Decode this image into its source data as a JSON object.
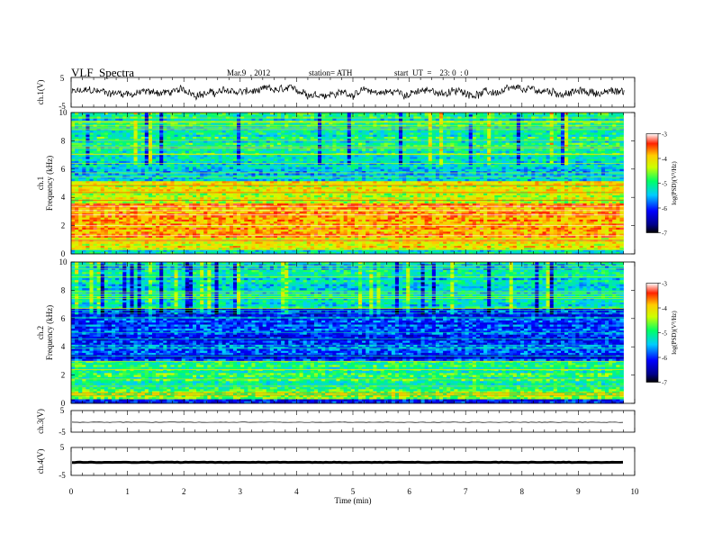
{
  "header": {
    "title": "VLF  Spectra",
    "date": "Mar.9  , 2012",
    "station": "station= ATH",
    "start": "start  UT  =    23: 0  : 0"
  },
  "chart_data": [
    {
      "type": "line",
      "id": "ch1",
      "ylabel": "ch.1(V)",
      "ylim": [
        -5,
        5
      ],
      "yticks": [
        "5",
        "-5"
      ],
      "xlim": [
        0,
        10
      ],
      "series": [
        {
          "values_note": "noisy waveform between about -2.5 and 2.5 V",
          "min": -2.5,
          "max": 2.5,
          "color": "#000000"
        }
      ]
    },
    {
      "type": "heatmap",
      "id": "ch1-spectrogram",
      "ylabel": "ch.1\nFrequency  (kHz)",
      "ylim": [
        0,
        10
      ],
      "yticks": [
        "0",
        "2",
        "4",
        "6",
        "8",
        "10"
      ],
      "xlim": [
        0,
        9.8
      ],
      "frequency_bands_kHz": [
        {
          "from": 0,
          "to": 0.3,
          "level": -5.2
        },
        {
          "from": 0.3,
          "to": 1.2,
          "level": -4.2
        },
        {
          "from": 1.2,
          "to": 3.6,
          "level": -3.8
        },
        {
          "from": 3.6,
          "to": 5.2,
          "level": -4.3
        },
        {
          "from": 5.2,
          "to": 6.5,
          "level": -5.3
        },
        {
          "from": 6.5,
          "to": 10,
          "level": -5.1
        }
      ],
      "colorbar": {
        "label": "log(PSD)(V²/Hz)",
        "range": [
          -7,
          -3
        ],
        "ticks": [
          "-3",
          "-4",
          "-5",
          "-6",
          "-7"
        ]
      }
    },
    {
      "type": "heatmap",
      "id": "ch2-spectrogram",
      "ylabel": "ch.2\nFrequency  (kHz)",
      "ylim": [
        0,
        10
      ],
      "yticks": [
        "0",
        "2",
        "4",
        "6",
        "8",
        "10"
      ],
      "xlim": [
        0,
        9.8
      ],
      "frequency_bands_kHz": [
        {
          "from": 0,
          "to": 0.3,
          "level": -6.0
        },
        {
          "from": 0.3,
          "to": 0.8,
          "level": -4.5
        },
        {
          "from": 0.8,
          "to": 3.0,
          "level": -5.0
        },
        {
          "from": 3.0,
          "to": 6.7,
          "level": -6.0
        },
        {
          "from": 6.7,
          "to": 10,
          "level": -5.3
        }
      ],
      "colorbar": {
        "label": "log(PSD)(V²/Hz)",
        "range": [
          -7,
          -3
        ],
        "ticks": [
          "-3",
          "-4",
          "-5",
          "-6",
          "-7"
        ]
      }
    },
    {
      "type": "line",
      "id": "ch3",
      "ylabel": "ch.3(V)",
      "ylim": [
        -5,
        5
      ],
      "yticks": [
        "5",
        "-5"
      ],
      "xlim": [
        0,
        10
      ],
      "series": [
        {
          "values_note": "nearly flat trace near 0 V",
          "level": 0,
          "color": "#000000"
        }
      ]
    },
    {
      "type": "line",
      "id": "ch4",
      "ylabel": "ch.4(V)",
      "ylim": [
        -5,
        5
      ],
      "yticks": [
        "5",
        "-5"
      ],
      "xlim": [
        0,
        10
      ],
      "xticks": [
        "0",
        "1",
        "2",
        "3",
        "4",
        "5",
        "6",
        "7",
        "8",
        "9",
        "10"
      ],
      "xlabel": "Time  (min)",
      "series": [
        {
          "values_note": "thick flat trace near 0 V",
          "level": 0,
          "color": "#000000"
        }
      ]
    }
  ]
}
